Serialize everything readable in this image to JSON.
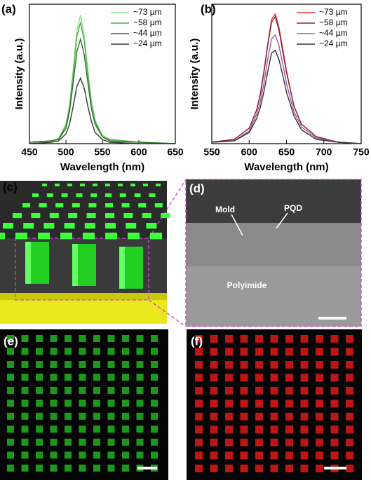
{
  "chart_data": [
    {
      "type": "line",
      "label": "(a)",
      "x_label": "Wavelength (nm)",
      "y_label": "Intensity (a.u.)",
      "x": [
        450,
        480,
        490,
        500,
        505,
        510,
        515,
        520,
        525,
        530,
        535,
        540,
        550,
        560,
        600,
        650
      ],
      "xlim": [
        450,
        650
      ],
      "xticks": [
        450,
        500,
        550,
        600,
        650
      ],
      "ylim": [
        0,
        1
      ],
      "legend": "upper right",
      "series": [
        {
          "name": "~73 µm",
          "color": "#86e07c",
          "values": [
            0.01,
            0.02,
            0.04,
            0.14,
            0.28,
            0.53,
            0.81,
            0.92,
            0.78,
            0.53,
            0.3,
            0.17,
            0.06,
            0.03,
            0.01,
            0.0
          ]
        },
        {
          "name": "~58 µm",
          "color": "#4fb548",
          "values": [
            0.01,
            0.02,
            0.03,
            0.13,
            0.26,
            0.5,
            0.77,
            0.87,
            0.74,
            0.5,
            0.29,
            0.16,
            0.05,
            0.03,
            0.01,
            0.0
          ]
        },
        {
          "name": "~44 µm",
          "color": "#2f6f2c",
          "values": [
            0.01,
            0.02,
            0.03,
            0.11,
            0.23,
            0.44,
            0.66,
            0.75,
            0.64,
            0.44,
            0.25,
            0.14,
            0.05,
            0.02,
            0.01,
            0.0
          ]
        },
        {
          "name": "~24 µm",
          "color": "#333333",
          "values": [
            0.0,
            0.01,
            0.02,
            0.07,
            0.14,
            0.27,
            0.41,
            0.47,
            0.4,
            0.27,
            0.16,
            0.08,
            0.03,
            0.01,
            0.0,
            0.0
          ]
        }
      ]
    },
    {
      "type": "line",
      "label": "(b)",
      "x_label": "Wavelength (nm)",
      "y_label": "Intensity (a.u.)",
      "x": [
        550,
        580,
        600,
        610,
        615,
        620,
        625,
        630,
        635,
        640,
        645,
        650,
        660,
        670,
        690,
        720,
        750
      ],
      "xlim": [
        550,
        750
      ],
      "xticks": [
        550,
        600,
        650,
        700,
        750
      ],
      "ylim": [
        0,
        1
      ],
      "legend": "upper right",
      "series": [
        {
          "name": "~73 µm",
          "color": "#e03030",
          "values": [
            0.01,
            0.03,
            0.11,
            0.24,
            0.36,
            0.53,
            0.72,
            0.89,
            0.93,
            0.83,
            0.68,
            0.52,
            0.27,
            0.14,
            0.05,
            0.01,
            0.0
          ]
        },
        {
          "name": "~58 µm",
          "color": "#8a2040",
          "values": [
            0.01,
            0.03,
            0.11,
            0.24,
            0.35,
            0.52,
            0.71,
            0.87,
            0.91,
            0.81,
            0.66,
            0.51,
            0.27,
            0.14,
            0.05,
            0.01,
            0.0
          ]
        },
        {
          "name": "~44 µm",
          "color": "#9a5aa8",
          "values": [
            0.01,
            0.02,
            0.09,
            0.21,
            0.3,
            0.44,
            0.61,
            0.75,
            0.78,
            0.7,
            0.57,
            0.43,
            0.23,
            0.12,
            0.04,
            0.01,
            0.0
          ]
        },
        {
          "name": "~24 µm",
          "color": "#333333",
          "values": [
            0.01,
            0.02,
            0.08,
            0.18,
            0.26,
            0.38,
            0.52,
            0.65,
            0.67,
            0.6,
            0.49,
            0.37,
            0.2,
            0.1,
            0.03,
            0.01,
            0.0
          ]
        }
      ]
    }
  ],
  "panels": {
    "c": {
      "label": "(c)"
    },
    "d": {
      "label": "(d)",
      "annotations": [
        "Mold",
        "PQD",
        "Polyimide"
      ]
    },
    "e": {
      "label": "(e)"
    },
    "f": {
      "label": "(f)"
    }
  }
}
